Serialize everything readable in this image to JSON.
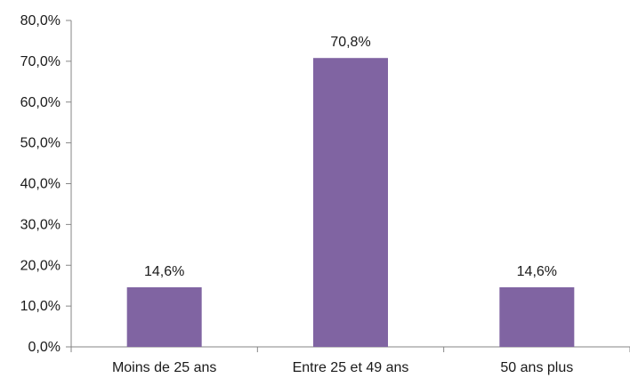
{
  "chart_data": {
    "type": "bar",
    "categories": [
      "Moins de 25 ans",
      "Entre 25 et 49 ans",
      "50 ans plus"
    ],
    "values": [
      14.6,
      70.8,
      14.6
    ],
    "data_labels": [
      "14,6%",
      "70,8%",
      "14,6%"
    ],
    "ylim": [
      0,
      80
    ],
    "yticks": [
      0,
      10,
      20,
      30,
      40,
      50,
      60,
      70,
      80
    ],
    "ytick_labels": [
      "0,0%",
      "10,0%",
      "20,0%",
      "30,0%",
      "40,0%",
      "50,0%",
      "60,0%",
      "70,0%",
      "80,0%"
    ],
    "grid": false,
    "legend": "none",
    "bar_color": "#8064a2",
    "axis_color": "#868686"
  }
}
